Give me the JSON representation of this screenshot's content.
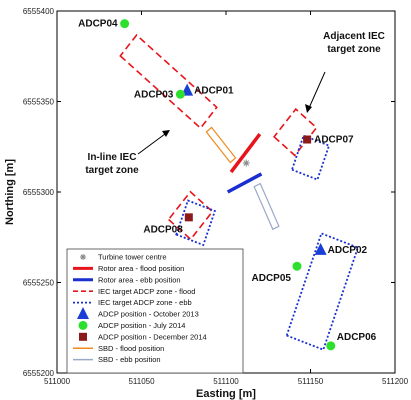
{
  "chart_data": {
    "type": "scatter",
    "xlabel": "Easting [m]",
    "ylabel": "Northing [m]",
    "xlim": [
      511000,
      511200
    ],
    "ylim": [
      6555200,
      6555400
    ],
    "x_ticks": [
      "511000",
      "511050",
      "511100",
      "511150",
      "511200"
    ],
    "y_ticks": [
      "6555200",
      "6555250",
      "6555300",
      "6555350",
      "6555400"
    ],
    "grid": false,
    "legend_position": "bottom-left",
    "legend": [
      {
        "key": "turbine",
        "label": "Turbine tower centre"
      },
      {
        "key": "rotor_flood",
        "label": "Rotor area - flood position"
      },
      {
        "key": "rotor_ebb",
        "label": "Rotor area - ebb position"
      },
      {
        "key": "iec_flood",
        "label": "IEC target ADCP zone - flood"
      },
      {
        "key": "iec_ebb",
        "label": "IEC target ADCP zone - ebb"
      },
      {
        "key": "adcp_oct2013",
        "label": "ADCP position - October 2013"
      },
      {
        "key": "adcp_jul2014",
        "label": "ADCP position - July 2014"
      },
      {
        "key": "adcp_dec2014",
        "label": "ADCP position - December 2014"
      },
      {
        "key": "sbd_flood",
        "label": "SBD - flood position"
      },
      {
        "key": "sbd_ebb",
        "label": "SBD - ebb position"
      }
    ],
    "colors": {
      "turbine": "#888888",
      "rotor_flood": "#e8141b",
      "rotor_ebb": "#1a2fd0",
      "iec_flood": "#e8141b",
      "iec_ebb": "#1a2fd0",
      "adcp_oct2013": "#1a3fd6",
      "adcp_jul2014": "#2ee02e",
      "adcp_dec2014": "#8b1a1a",
      "sbd_flood": "#f08a1c",
      "sbd_ebb": "#9aa9c8"
    },
    "turbine": {
      "x": 511112,
      "y": 6555316
    },
    "rotor_flood": [
      [
        511103,
        6555311
      ],
      [
        511120,
        6555332
      ]
    ],
    "rotor_ebb": [
      [
        511101,
        6555300
      ],
      [
        511121,
        6555310
      ]
    ],
    "sbd_flood": {
      "centre": [
        511097,
        6555326
      ],
      "angle_deg": -50,
      "length": 22,
      "width": 4
    },
    "sbd_ebb": {
      "centre": [
        511124,
        6555292
      ],
      "angle_deg": -65,
      "length": 26,
      "width": 4
    },
    "iec_flood_zones": [
      {
        "centre": [
          511066,
          6555361
        ],
        "angle_deg": -40,
        "width": 62,
        "height": 15
      },
      {
        "centre": [
          511141,
          6555333
        ],
        "angle_deg": -40,
        "width": 16,
        "height": 20
      },
      {
        "centre": [
          511079,
          6555287
        ],
        "angle_deg": -40,
        "width": 17,
        "height": 20
      }
    ],
    "iec_ebb_zones": [
      {
        "centre": [
          511150,
          6555319
        ],
        "angle_deg": -20,
        "width": 16,
        "height": 20
      },
      {
        "centre": [
          511082,
          6555283
        ],
        "angle_deg": -20,
        "width": 17,
        "height": 20
      },
      {
        "centre": [
          511157,
          6555245
        ],
        "angle_deg": -20,
        "width": 23,
        "height": 60
      }
    ],
    "points": [
      {
        "name": "ADCP04",
        "x": 511040,
        "y": 6555393,
        "type": "adcp_jul2014",
        "label_pos": "left"
      },
      {
        "name": "ADCP01",
        "x": 511077,
        "y": 6555356,
        "type": "adcp_oct2013",
        "label_pos": "right"
      },
      {
        "name": "ADCP03",
        "x": 511073,
        "y": 6555354,
        "type": "adcp_jul2014",
        "label_pos": "left"
      },
      {
        "name": "ADCP07",
        "x": 511148,
        "y": 6555329,
        "type": "adcp_dec2014",
        "label_pos": "right"
      },
      {
        "name": "ADCP08",
        "x": 511078,
        "y": 6555286,
        "type": "adcp_dec2014",
        "label_pos": "below-left"
      },
      {
        "name": "ADCP02",
        "x": 511156,
        "y": 6555268,
        "type": "adcp_oct2013",
        "label_pos": "right"
      },
      {
        "name": "ADCP05",
        "x": 511142,
        "y": 6555259,
        "type": "adcp_jul2014",
        "label_pos": "below-left"
      },
      {
        "name": "ADCP06",
        "x": 511162,
        "y": 6555215,
        "type": "adcp_jul2014",
        "label_pos": "above-right"
      }
    ],
    "annotations": [
      {
        "name": "adjacent",
        "lines": [
          "Adjacent IEC",
          "target zone"
        ]
      },
      {
        "name": "inline",
        "lines": [
          "In-line IEC",
          "target zone"
        ]
      }
    ]
  }
}
